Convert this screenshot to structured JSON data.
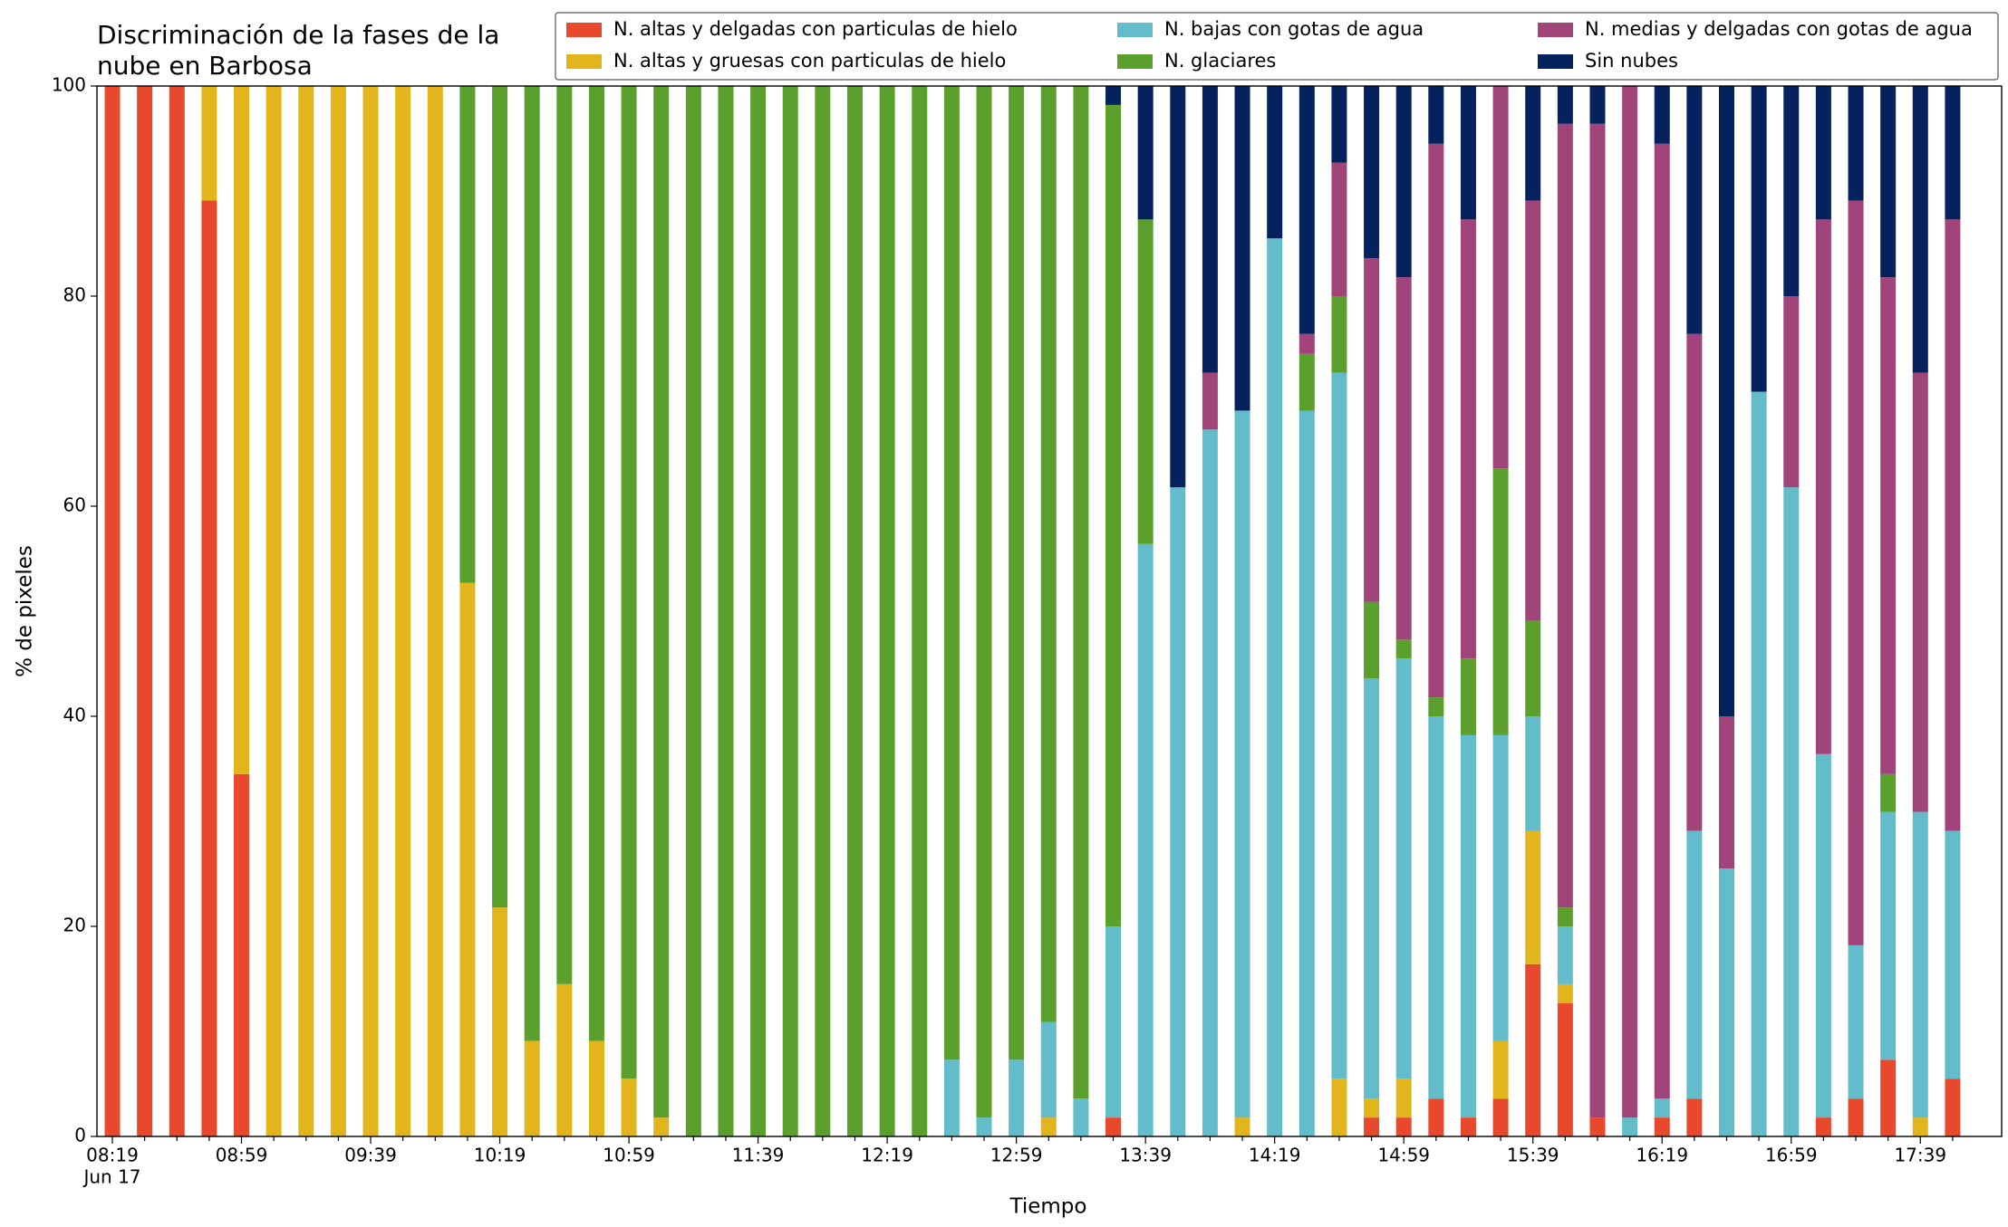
{
  "chart_data": {
    "type": "stacked_bar",
    "title": [
      "Discriminación de la fases de la",
      "nube en Barbosa"
    ],
    "x_label": "Tiempo",
    "y_label": "% de pixeles",
    "x_date_label": "Jun 17",
    "categories": [
      "08:19",
      null,
      null,
      null,
      "08:59",
      null,
      null,
      null,
      "09:39",
      null,
      null,
      null,
      "10:19",
      null,
      null,
      null,
      "10:59",
      null,
      null,
      null,
      "11:39",
      null,
      null,
      null,
      "12:19",
      null,
      null,
      null,
      "12:59",
      null,
      null,
      null,
      "13:39",
      null,
      null,
      null,
      "14:19",
      null,
      null,
      null,
      "14:59",
      null,
      null,
      null,
      "15:39",
      null,
      null,
      null,
      "16:19",
      null,
      null,
      null,
      "16:59",
      null,
      null,
      null,
      "17:39",
      null
    ],
    "ylim": [
      0,
      100
    ],
    "yticks": [
      0,
      20,
      40,
      60,
      80,
      100
    ],
    "grid": false,
    "legend_position": "top-right",
    "legend_columns": 3,
    "series": [
      {
        "name": "N. altas y delgadas con particulas de hielo",
        "color": "#e8482c",
        "values": [
          100,
          100,
          100,
          89.1,
          34.5,
          0,
          0,
          0,
          0,
          0,
          0,
          0,
          0,
          0,
          0,
          0,
          0,
          0,
          0,
          0,
          0,
          0,
          0,
          0,
          0,
          0,
          0,
          0,
          0,
          0,
          0,
          1.8,
          0,
          0,
          0,
          0,
          0,
          0,
          0,
          1.8,
          1.8,
          3.6,
          1.8,
          3.6,
          16.4,
          12.7,
          1.8,
          0,
          1.8,
          3.6,
          0,
          0,
          0,
          1.8,
          3.6,
          7.3,
          0,
          5.5
        ]
      },
      {
        "name": "N. altas y gruesas con particulas de hielo",
        "color": "#e3b51d",
        "values": [
          0,
          0,
          0,
          10.9,
          65.5,
          100,
          100,
          100,
          100,
          100,
          100,
          52.7,
          21.8,
          9.1,
          14.5,
          9.1,
          5.5,
          1.8,
          0,
          0,
          0,
          0,
          0,
          0,
          0,
          0,
          0,
          0,
          0,
          1.8,
          0,
          0,
          0,
          0,
          0,
          1.8,
          0,
          0,
          5.5,
          1.8,
          3.7,
          0,
          0,
          5.5,
          12.7,
          1.8,
          0,
          0,
          0,
          0,
          0,
          0,
          0,
          0,
          0,
          0,
          1.8,
          0
        ]
      },
      {
        "name": "N. bajas con gotas de agua",
        "color": "#63bcc9",
        "values": [
          0,
          0,
          0,
          0,
          0,
          0,
          0,
          0,
          0,
          0,
          0,
          0,
          0,
          0,
          0,
          0,
          0,
          0,
          0,
          0,
          0,
          0,
          0,
          0,
          0,
          0,
          7.3,
          1.8,
          7.3,
          9.1,
          3.6,
          18.2,
          56.4,
          61.8,
          67.3,
          67.3,
          85.5,
          69.1,
          67.2,
          40,
          40,
          36.4,
          36.4,
          29.1,
          10.9,
          5.5,
          0,
          1.8,
          1.8,
          25.5,
          25.5,
          70.9,
          61.8,
          34.6,
          14.6,
          23.6,
          29.1,
          23.6
        ]
      },
      {
        "name": "N. glaciares",
        "color": "#5b9f2c",
        "values": [
          0,
          0,
          0,
          0,
          0,
          0,
          0,
          0,
          0,
          0,
          0,
          47.3,
          78.2,
          90.9,
          85.5,
          90.9,
          94.5,
          98.2,
          100,
          100,
          100,
          100,
          100,
          100,
          100,
          100,
          92.7,
          98.2,
          92.7,
          89.1,
          96.4,
          78.2,
          30.9,
          0,
          0,
          0,
          0,
          5.4,
          7.3,
          7.3,
          1.8,
          1.8,
          7.3,
          25.4,
          9.1,
          1.8,
          0,
          0,
          0,
          0,
          0,
          0,
          0,
          0,
          0,
          3.6,
          0,
          0
        ]
      },
      {
        "name": "N. medias y delgadas con gotas de agua",
        "color": "#a0447a",
        "values": [
          0,
          0,
          0,
          0,
          0,
          0,
          0,
          0,
          0,
          0,
          0,
          0,
          0,
          0,
          0,
          0,
          0,
          0,
          0,
          0,
          0,
          0,
          0,
          0,
          0,
          0,
          0,
          0,
          0,
          0,
          0,
          0,
          0,
          0,
          5.4,
          0,
          0,
          1.9,
          12.7,
          32.7,
          34.5,
          52.7,
          41.8,
          36.4,
          40,
          74.6,
          94.6,
          98.2,
          90.9,
          47.3,
          14.5,
          0,
          18.2,
          50.9,
          70.9,
          47.3,
          41.8,
          58.2
        ]
      },
      {
        "name": "Sin nubes",
        "color": "#05215e",
        "values": [
          0,
          0,
          0,
          0,
          0,
          0,
          0,
          0,
          0,
          0,
          0,
          0,
          0,
          0,
          0,
          0,
          0,
          0,
          0,
          0,
          0,
          0,
          0,
          0,
          0,
          0,
          0,
          0,
          0,
          0,
          0,
          1.8,
          12.7,
          38.2,
          27.3,
          30.9,
          14.5,
          23.6,
          7.3,
          16.4,
          18.2,
          5.5,
          12.7,
          0,
          10.9,
          3.6,
          3.6,
          0,
          5.5,
          23.6,
          60,
          29.1,
          20,
          12.7,
          10.9,
          18.2,
          27.3,
          12.7
        ]
      }
    ]
  }
}
